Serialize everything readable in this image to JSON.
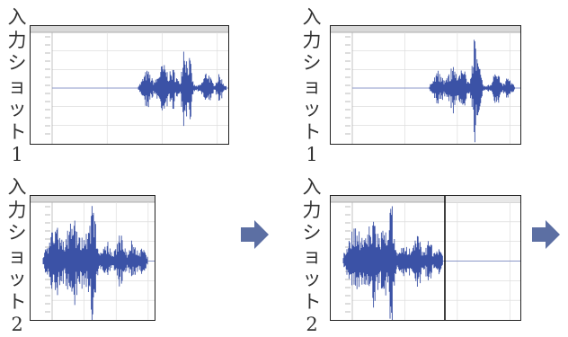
{
  "labels": {
    "shot1": "入力ショット1",
    "shot2": "入力ショット2"
  },
  "colors": {
    "waveform": "#3b52a6",
    "arrow": "#5c6fa3",
    "border": "#222222"
  },
  "icons": {
    "step_arrow": "right-arrow-icon"
  }
}
